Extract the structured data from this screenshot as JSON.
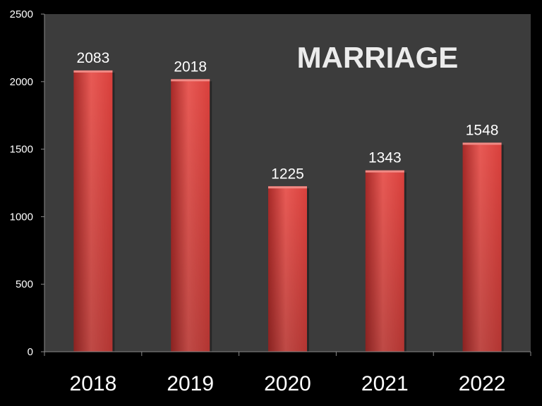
{
  "chart_data": {
    "type": "bar",
    "title": "MARRIAGE",
    "categories": [
      "2018",
      "2019",
      "2020",
      "2021",
      "2022"
    ],
    "values": [
      2083,
      2018,
      1225,
      1343,
      1548
    ],
    "data_labels": [
      "2083",
      "2018",
      "1225",
      "1343",
      "1548"
    ],
    "y_ticks": [
      "0",
      "500",
      "1000",
      "1500",
      "2000",
      "2500"
    ],
    "xlabel": "",
    "ylabel": "",
    "ylim": [
      0,
      2500
    ],
    "grid": false,
    "legend": "none",
    "colors": {
      "bar": "#d9403c",
      "bar_light": "#e85a55",
      "bar_dark": "#a82a28",
      "plot_background": "#3c3c3c",
      "page_background": "#000000",
      "text": "#ffffff",
      "title": "#ececec"
    }
  }
}
